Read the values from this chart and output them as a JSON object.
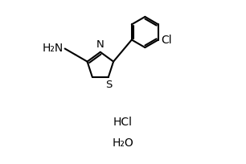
{
  "bg_color": "#ffffff",
  "line_color": "#000000",
  "line_width": 1.5,
  "font_size": 10,
  "hcl_text": "HCl",
  "h2o_text": "H₂O",
  "nh2_text": "H₂N",
  "n_text": "N",
  "s_text": "S",
  "cl_text": "Cl"
}
